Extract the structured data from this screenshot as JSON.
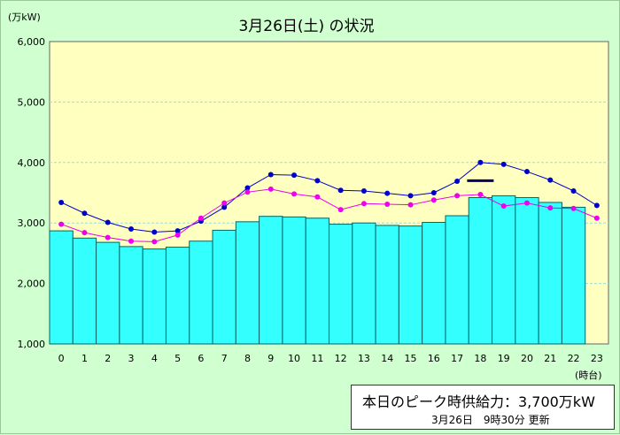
{
  "chart_data": {
    "type": "bar",
    "title": "3月26日(土) の状況",
    "ylabel": "(万kW)",
    "xlabel": "(時台)",
    "ylim": [
      1000,
      6000
    ],
    "y_ticks": [
      "1,000",
      "2,000",
      "3,000",
      "4,000",
      "5,000",
      "6,000"
    ],
    "categories": [
      "0",
      "1",
      "2",
      "3",
      "4",
      "5",
      "6",
      "7",
      "8",
      "9",
      "10",
      "11",
      "12",
      "13",
      "14",
      "15",
      "16",
      "17",
      "18",
      "19",
      "20",
      "21",
      "22",
      "23"
    ],
    "series": [
      {
        "values": [
          2870,
          2750,
          2680,
          2610,
          2570,
          2600,
          2700,
          2880,
          3020,
          3110,
          3100,
          3080,
          2980,
          3000,
          2960,
          2950,
          3010,
          3120,
          3420,
          3450,
          3420,
          3340,
          3260,
          null
        ]
      },
      {
        "values": [
          3340,
          3160,
          3010,
          2900,
          2850,
          2870,
          3030,
          3260,
          3580,
          3800,
          3790,
          3700,
          3540,
          3530,
          3490,
          3450,
          3500,
          3690,
          4000,
          3970,
          3850,
          3710,
          3530,
          3290
        ]
      },
      {
        "values": [
          2980,
          2840,
          2760,
          2700,
          2690,
          2800,
          3080,
          3330,
          3510,
          3560,
          3480,
          3430,
          3220,
          3320,
          3310,
          3300,
          3380,
          3450,
          3470,
          3280,
          3330,
          3250,
          3240,
          3080
        ]
      }
    ],
    "peak_supply_marker": {
      "hour": "18",
      "value": 3700
    },
    "colors": {
      "plot_bg": "#ffffc0",
      "bar_fill": "#33ffff",
      "bar_stroke": "#006666",
      "line_blue": "#0000cc",
      "line_magenta": "#ee00ee",
      "marker": "#000066",
      "grid": "#99dddd"
    },
    "grid": true,
    "legend": "none"
  },
  "info": {
    "supply_text": "本日のピーク時供給力：3,700万kW",
    "updated_text": "3月26日　9時30分 更新"
  }
}
